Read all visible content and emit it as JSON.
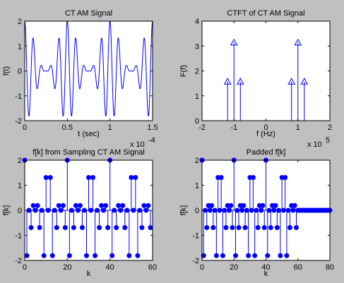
{
  "figure": {
    "background": "#c0c0c0",
    "axes_background": "#ffffff",
    "line_color": "#0000ff"
  },
  "chart_data": [
    {
      "id": "ct-am",
      "type": "line",
      "title": "CT AM Signal",
      "xlabel": "t (sec)",
      "ylabel": "f(t)",
      "x_exponent": "x 10",
      "x_exponent_power": "-4",
      "xlim": [
        0,
        1.5
      ],
      "ylim": [
        -2,
        2
      ],
      "xticks": [
        0,
        0.5,
        1,
        1.5
      ],
      "xtick_labels": [
        "0",
        "0.5",
        "1",
        "1.5"
      ],
      "yticks": [
        -2,
        -1,
        0,
        1,
        2
      ],
      "ytick_labels": [
        "-2",
        "-1",
        "0",
        "1",
        "2"
      ],
      "signal": {
        "formula": "cos(2*pi*f_c*t) * (1 + cos(2*pi*f_m*t))",
        "carrier_hz": 100000,
        "modulating_hz": 20000,
        "t_scale": 0.0001
      }
    },
    {
      "id": "ctft",
      "type": "stem",
      "title": "CTFT of CT AM Signal",
      "xlabel": "f (Hz)",
      "ylabel": "F(f)",
      "x_exponent": "x 10",
      "x_exponent_power": "5",
      "xlim": [
        -2,
        2
      ],
      "ylim": [
        0,
        4
      ],
      "xticks": [
        -2,
        -1,
        0,
        1,
        2
      ],
      "xtick_labels": [
        "-2",
        "-1",
        "0",
        "1",
        "2"
      ],
      "yticks": [
        0,
        1,
        2,
        3,
        4
      ],
      "ytick_labels": [
        "0",
        "1",
        "2",
        "3",
        "4"
      ],
      "x": [
        -1.2,
        -1.0,
        -0.8,
        0.8,
        1.0,
        1.2
      ],
      "values": [
        1.57,
        3.14,
        1.57,
        1.57,
        3.14,
        1.57
      ],
      "marker": "triangle"
    },
    {
      "id": "sampled",
      "type": "stem",
      "title": "f[k] from Sampling CT AM Signal",
      "xlabel": "k",
      "ylabel": "f[k]",
      "xlim": [
        0,
        60
      ],
      "ylim": [
        -2,
        2
      ],
      "xticks": [
        0,
        20,
        40,
        60
      ],
      "xtick_labels": [
        "0",
        "20",
        "40",
        "60"
      ],
      "yticks": [
        -2,
        -1,
        0,
        1,
        2
      ],
      "ytick_labels": [
        "-2",
        "-1",
        "0",
        "1",
        "2"
      ],
      "k_start": 0,
      "values": [
        2,
        -1.809,
        0,
        -0.691,
        0.191,
        0,
        0.191,
        -0.691,
        0,
        -1.809,
        1.309,
        0,
        1.309,
        -1.809,
        0,
        -0.691,
        0.191,
        0,
        0.191,
        -0.691,
        2,
        -1.809,
        0,
        -0.691,
        0.191,
        0,
        0.191,
        -0.691,
        0,
        -1.809,
        1.309,
        0,
        1.309,
        -1.809,
        0,
        -0.691,
        0.191,
        0,
        0.191,
        -0.691,
        2,
        -1.809,
        0,
        -0.691,
        0.191,
        0,
        0.191,
        -0.691,
        0,
        -1.809,
        1.309,
        0,
        1.309,
        -1.809,
        0,
        -0.691,
        0.191,
        0,
        0.191,
        -0.691
      ],
      "marker": "dot"
    },
    {
      "id": "padded",
      "type": "stem",
      "title": "Padded f[k]",
      "xlabel": "k",
      "ylabel": "f[k]",
      "xlim": [
        0,
        80
      ],
      "ylim": [
        -2,
        2
      ],
      "xticks": [
        0,
        20,
        40,
        60,
        80
      ],
      "xtick_labels": [
        "0",
        "20",
        "40",
        "60",
        "80"
      ],
      "yticks": [
        -2,
        -1,
        0,
        1,
        2
      ],
      "ytick_labels": [
        "-2",
        "-1",
        "0",
        "1",
        "2"
      ],
      "k_start": 0,
      "values": [
        2,
        -1.809,
        0,
        -0.691,
        0.191,
        0,
        0.191,
        -0.691,
        0,
        -1.809,
        1.309,
        0,
        1.309,
        -1.809,
        0,
        -0.691,
        0.191,
        0,
        0.191,
        -0.691,
        2,
        -1.809,
        0,
        -0.691,
        0.191,
        0,
        0.191,
        -0.691,
        0,
        -1.809,
        1.309,
        0,
        1.309,
        -1.809,
        0,
        -0.691,
        0.191,
        0,
        0.191,
        -0.691,
        2,
        -1.809,
        0,
        -0.691,
        0.191,
        0,
        0.191,
        -0.691,
        0,
        -1.809,
        1.309,
        0,
        1.309,
        -1.809,
        0,
        -0.691,
        0.191,
        0,
        0.191,
        -0.691,
        0,
        0,
        0,
        0,
        0,
        0,
        0,
        0,
        0,
        0,
        0,
        0,
        0,
        0,
        0,
        0,
        0,
        0,
        0,
        0,
        0
      ],
      "marker": "dot"
    }
  ]
}
